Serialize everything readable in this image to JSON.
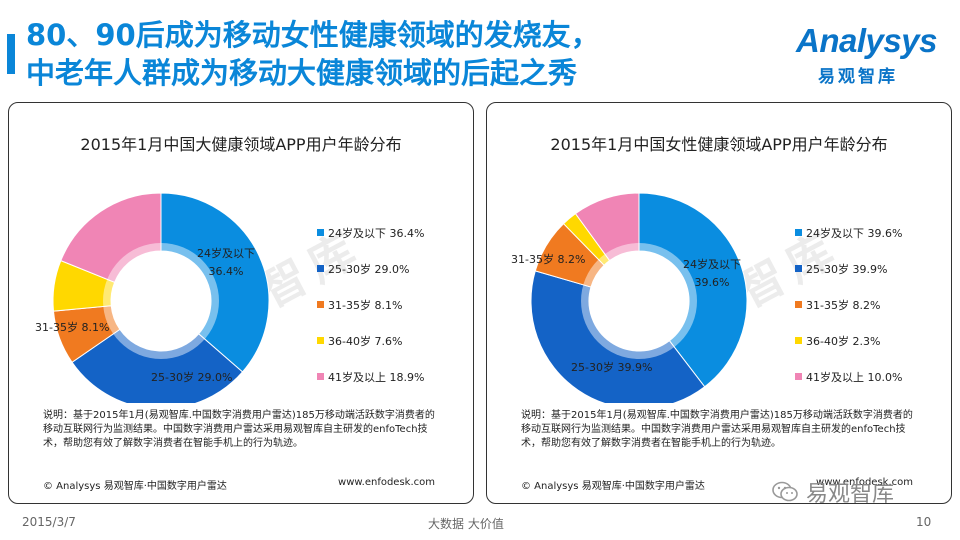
{
  "header": {
    "title_line1": "80、90后成为移动女性健康领域的发烧友，",
    "title_line2": "中老年人群成为移动大健康领域的后起之秀",
    "logo_word": "Analysys",
    "logo_sub": "易观智库"
  },
  "panels": [
    {
      "watermark": "易观智库",
      "note": "说明：基于2015年1月(易观智库.中国数字消费用户雷达)185万移动端活跃数字消费者的移动互联网行为监测结果。中国数字消费用户雷达采用易观智库自主研发的enfoTech技术，帮助您有效了解数字消费者在智能手机上的行为轨迹。",
      "footer_left": "© Analysys 易观智库·中国数字用户雷达",
      "footer_right": "www.enfodesk.com"
    },
    {
      "watermark": "易观智库",
      "note": "说明：基于2015年1月(易观智库.中国数字消费用户雷达)185万移动端活跃数字消费者的移动互联网行为监测结果。中国数字消费用户雷达采用易观智库自主研发的enfoTech技术，帮助您有效了解数字消费者在智能手机上的行为轨迹。",
      "footer_left": "© Analysys 易观智库·中国数字用户雷达",
      "footer_right": "www.enfodesk.com"
    }
  ],
  "chart_data": [
    {
      "type": "pie",
      "style": "donut",
      "title": "2015年1月中国大健康领域APP用户年龄分布",
      "legend_position": "right",
      "categories": [
        "24岁及以下",
        "25-30岁",
        "31-35岁",
        "36-40岁",
        "41岁及以上"
      ],
      "values": [
        36.4,
        29.0,
        8.1,
        7.6,
        18.9
      ],
      "value_labels": [
        "36.4%",
        "29.0%",
        "8.1%",
        "7.6%",
        "18.9%"
      ],
      "colors": [
        "#0a8de0",
        "#1463c6",
        "#f07a20",
        "#ffd800",
        "#f085b5"
      ],
      "slice_label_text": [
        "24岁及以下\n36.4%",
        "25-30岁 29.0%",
        "31-35岁 8.1%",
        "",
        ""
      ],
      "legend_labels": [
        "24岁及以下 36.4%",
        "25-30岁 29.0%",
        "31-35岁 8.1%",
        "36-40岁 7.6%",
        "41岁及以上 18.9%"
      ]
    },
    {
      "type": "pie",
      "style": "donut",
      "title": "2015年1月中国女性健康领域APP用户年龄分布",
      "legend_position": "right",
      "categories": [
        "24岁及以下",
        "25-30岁",
        "31-35岁",
        "36-40岁",
        "41岁及以上"
      ],
      "values": [
        39.6,
        39.9,
        8.2,
        2.3,
        10.0
      ],
      "value_labels": [
        "39.6%",
        "39.9%",
        "8.2%",
        "2.3%",
        "10.0%"
      ],
      "colors": [
        "#0a8de0",
        "#1463c6",
        "#f07a20",
        "#ffd800",
        "#f085b5"
      ],
      "slice_label_text": [
        "24岁及以下\n39.6%",
        "25-30岁 39.9%",
        "31-35岁 8.2%",
        "",
        ""
      ],
      "legend_labels": [
        "24岁及以下 39.6%",
        "25-30岁 39.9%",
        "31-35岁 8.2%",
        "36-40岁 2.3%",
        "41岁及以上 10.0%"
      ]
    }
  ],
  "bottom": {
    "date": "2015/3/7",
    "slogan": "大数据   大价值",
    "page": "10",
    "wechat_name": "易观智库"
  }
}
